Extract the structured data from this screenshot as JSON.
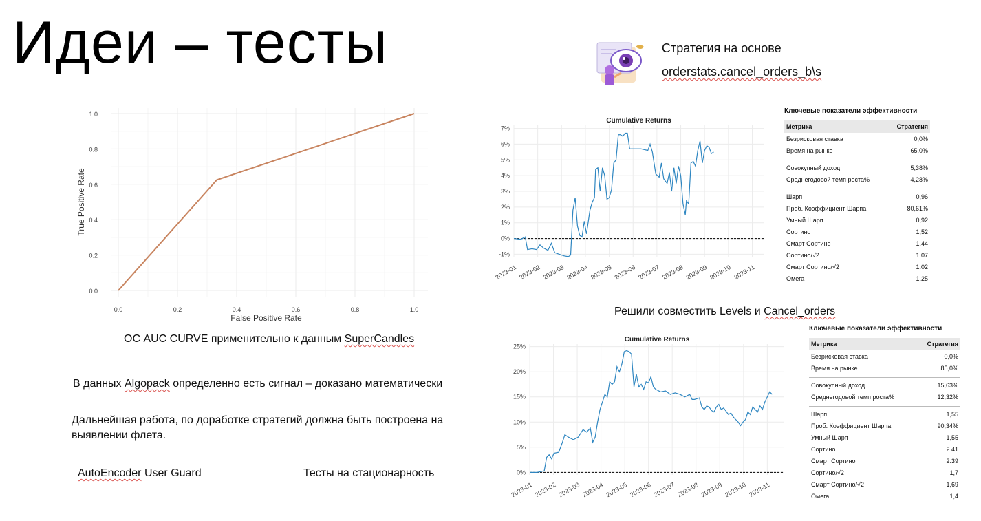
{
  "slide": {
    "title": "Идеи – тесты",
    "strategy_line1": "Стратегия на основе",
    "strategy_line2": "orderstats.cancel_orders_b\\s",
    "combine_note_pre": "Решили совместить Levels и ",
    "combine_note_link": "Cancel_orders",
    "roc_caption_pre": "ОС AUC CURVE применительно к данным ",
    "roc_caption_link": "SuperCandles",
    "signal_pre": "В данных ",
    "signal_link": "Algopack",
    "signal_post": " определенно есть сигнал – доказано математически",
    "further_line1": "Дальнейшая работа, по доработке стратегий должна быть построена на",
    "further_line2": "выявлении флета.",
    "autoencoder_link": "AutoEncoder",
    "autoencoder_post": " User Guard",
    "stationarity": "Тесты на стационарность"
  },
  "colors": {
    "roc_line": "#c8845f",
    "returns_line": "#2e86c1",
    "zero_line": "#000000"
  },
  "metrics_tables": [
    {
      "title": "Ключевые показатели эффективности",
      "header": [
        "Метрика",
        "Стратегия"
      ],
      "groups": [
        [
          [
            "Безрисковая ставка",
            "0,0%"
          ],
          [
            "Время на рынке",
            "65,0%"
          ]
        ],
        [
          [
            "Совокупный доход",
            "5,38%"
          ],
          [
            "Среднегодовой темп роста%",
            "4,28%"
          ]
        ],
        [
          [
            "Шарп",
            "0,96"
          ],
          [
            "Проб. Коэффициент Шарпа",
            "80,61%"
          ],
          [
            "Умный Шарп",
            "0,92"
          ],
          [
            "Сортино",
            "1,52"
          ],
          [
            "Смарт Сортино",
            "1.44"
          ],
          [
            "Сортино/√2",
            "1.07"
          ],
          [
            "Смарт Сортино/√2",
            "1.02"
          ],
          [
            "Омега",
            "1,25"
          ]
        ]
      ]
    },
    {
      "title": "Ключевые показатели эффективности",
      "header": [
        "Метрика",
        "Стратегия"
      ],
      "groups": [
        [
          [
            "Безрисковая ставка",
            "0,0%"
          ],
          [
            "Время на рынке",
            "85,0%"
          ]
        ],
        [
          [
            "Совокупный доход",
            "15,63%"
          ],
          [
            "Среднегодовой темп роста%",
            "12,32%"
          ]
        ],
        [
          [
            "Шарп",
            "1,55"
          ],
          [
            "Проб. Коэффициент Шарпа",
            "90,34%"
          ],
          [
            "Умный Шарп",
            "1,55"
          ],
          [
            "Сортино",
            "2.41"
          ],
          [
            "Смарт Сортино",
            "2.39"
          ],
          [
            "Сортино/√2",
            "1,7"
          ],
          [
            "Смарт Сортино/√2",
            "1,69"
          ],
          [
            "Омега",
            "1,4"
          ]
        ]
      ]
    }
  ],
  "chart_data": [
    {
      "type": "line",
      "title": "",
      "xlabel": "False Positive Rate",
      "ylabel": "True Positive Rate",
      "x": [
        0.0,
        0.333,
        1.0
      ],
      "y": [
        0.0,
        0.625,
        1.0
      ],
      "xlim": [
        0,
        1
      ],
      "ylim": [
        0,
        1
      ],
      "xticks": [
        0.0,
        0.2,
        0.4,
        0.6,
        0.8,
        1.0
      ],
      "yticks": [
        0.0,
        0.2,
        0.4,
        0.6,
        0.8,
        1.0
      ],
      "tick_labels": [
        "0.0",
        "0.2",
        "0.4",
        "0.6",
        "0.8",
        "1.0"
      ],
      "grid": true
    },
    {
      "type": "line",
      "title": "Cumulative Returns",
      "xlabel": "",
      "ylabel": "",
      "x_ticks": [
        "2023-01",
        "2023-02",
        "2023-03",
        "2023-04",
        "2023-05",
        "2023-06",
        "2023-07",
        "2023-08",
        "2023-09",
        "2023-10",
        "2023-11"
      ],
      "y_ticks": [
        "-1%",
        "0%",
        "1%",
        "2%",
        "3%",
        "4%",
        "5%",
        "6%",
        "7%"
      ],
      "ylim": [
        -1.2,
        7.2
      ],
      "grid": true,
      "series": [
        {
          "values": [
            [
              0.0,
              0.0
            ],
            [
              0.3,
              -0.05
            ],
            [
              0.5,
              0.1
            ],
            [
              0.6,
              -0.7
            ],
            [
              0.8,
              -0.65
            ],
            [
              1.0,
              -0.7
            ],
            [
              1.15,
              -0.4
            ],
            [
              1.3,
              -0.6
            ],
            [
              1.5,
              -0.75
            ],
            [
              1.65,
              -0.3
            ],
            [
              1.8,
              -0.9
            ],
            [
              2.0,
              -1.0
            ],
            [
              2.2,
              -1.1
            ],
            [
              2.4,
              -1.15
            ],
            [
              2.5,
              -1.05
            ],
            [
              2.6,
              1.8
            ],
            [
              2.7,
              2.6
            ],
            [
              2.8,
              0.8
            ],
            [
              2.9,
              0.2
            ],
            [
              3.0,
              0.1
            ],
            [
              3.1,
              1.1
            ],
            [
              3.2,
              0.3
            ],
            [
              3.35,
              1.8
            ],
            [
              3.45,
              2.3
            ],
            [
              3.55,
              2.6
            ],
            [
              3.6,
              4.4
            ],
            [
              3.7,
              4.5
            ],
            [
              3.8,
              3.0
            ],
            [
              3.9,
              4.5
            ],
            [
              4.0,
              4.0
            ],
            [
              4.1,
              2.5
            ],
            [
              4.2,
              2.6
            ],
            [
              4.3,
              3.1
            ],
            [
              4.4,
              4.8
            ],
            [
              4.5,
              5.0
            ],
            [
              4.6,
              6.6
            ],
            [
              4.7,
              6.6
            ],
            [
              4.8,
              6.5
            ],
            [
              4.9,
              6.7
            ],
            [
              5.0,
              6.7
            ],
            [
              5.1,
              5.7
            ],
            [
              5.3,
              5.7
            ],
            [
              5.6,
              5.7
            ],
            [
              5.9,
              5.6
            ],
            [
              6.0,
              6.0
            ],
            [
              6.1,
              5.5
            ],
            [
              6.25,
              4.1
            ],
            [
              6.4,
              3.9
            ],
            [
              6.5,
              4.8
            ],
            [
              6.6,
              3.8
            ],
            [
              6.75,
              3.5
            ],
            [
              6.85,
              4.2
            ],
            [
              6.95,
              3.0
            ],
            [
              7.05,
              4.5
            ],
            [
              7.15,
              3.5
            ],
            [
              7.25,
              4.6
            ],
            [
              7.35,
              4.0
            ],
            [
              7.45,
              2.2
            ],
            [
              7.55,
              1.5
            ],
            [
              7.6,
              2.4
            ],
            [
              7.7,
              2.2
            ],
            [
              7.8,
              4.8
            ],
            [
              7.9,
              4.9
            ],
            [
              8.0,
              4.6
            ],
            [
              8.1,
              5.6
            ],
            [
              8.2,
              6.2
            ],
            [
              8.3,
              4.8
            ],
            [
              8.4,
              5.6
            ],
            [
              8.5,
              5.9
            ],
            [
              8.6,
              5.8
            ],
            [
              8.7,
              5.4
            ],
            [
              8.8,
              5.5
            ]
          ]
        }
      ]
    },
    {
      "type": "line",
      "title": "Cumulative Returns",
      "xlabel": "",
      "ylabel": "",
      "x_ticks": [
        "2023-01",
        "2023-02",
        "2023-03",
        "2023-04",
        "2023-05",
        "2023-06",
        "2023-07",
        "2023-08",
        "2023-09",
        "2023-10",
        "2023-11"
      ],
      "y_ticks": [
        "0%",
        "5%",
        "10%",
        "15%",
        "20%",
        "25%"
      ],
      "ylim": [
        -0.5,
        25.5
      ],
      "grid": true,
      "series": [
        {
          "values": [
            [
              0.0,
              0.0
            ],
            [
              0.3,
              0.0
            ],
            [
              0.6,
              0.3
            ],
            [
              0.7,
              3.0
            ],
            [
              0.8,
              3.5
            ],
            [
              0.9,
              2.7
            ],
            [
              1.0,
              3.8
            ],
            [
              1.2,
              4.0
            ],
            [
              1.35,
              6.0
            ],
            [
              1.45,
              7.5
            ],
            [
              1.6,
              7.0
            ],
            [
              1.8,
              6.5
            ],
            [
              2.0,
              7.0
            ],
            [
              2.2,
              8.5
            ],
            [
              2.35,
              8.0
            ],
            [
              2.5,
              8.8
            ],
            [
              2.6,
              6.0
            ],
            [
              2.7,
              7.0
            ],
            [
              2.8,
              10.0
            ],
            [
              2.9,
              12.5
            ],
            [
              3.0,
              14.0
            ],
            [
              3.1,
              15.5
            ],
            [
              3.2,
              15.0
            ],
            [
              3.3,
              18.0
            ],
            [
              3.4,
              17.5
            ],
            [
              3.5,
              18.0
            ],
            [
              3.6,
              21.0
            ],
            [
              3.7,
              20.0
            ],
            [
              3.8,
              21.5
            ],
            [
              3.9,
              24.0
            ],
            [
              4.0,
              24.2
            ],
            [
              4.1,
              24.0
            ],
            [
              4.2,
              23.5
            ],
            [
              4.3,
              17.0
            ],
            [
              4.4,
              19.5
            ],
            [
              4.5,
              17.0
            ],
            [
              4.6,
              17.5
            ],
            [
              4.7,
              16.5
            ],
            [
              4.8,
              18.0
            ],
            [
              4.9,
              17.8
            ],
            [
              5.0,
              19.0
            ],
            [
              5.1,
              17.0
            ],
            [
              5.2,
              16.5
            ],
            [
              5.4,
              16.0
            ],
            [
              5.6,
              16.2
            ],
            [
              5.8,
              15.5
            ],
            [
              6.0,
              15.8
            ],
            [
              6.2,
              15.5
            ],
            [
              6.4,
              15.0
            ],
            [
              6.6,
              15.5
            ],
            [
              6.7,
              14.5
            ],
            [
              6.8,
              14.5
            ],
            [
              7.0,
              14.8
            ],
            [
              7.1,
              13.0
            ],
            [
              7.2,
              12.5
            ],
            [
              7.3,
              13.2
            ],
            [
              7.4,
              13.0
            ],
            [
              7.5,
              12.3
            ],
            [
              7.6,
              12.0
            ],
            [
              7.7,
              13.0
            ],
            [
              7.8,
              13.5
            ],
            [
              7.9,
              12.5
            ],
            [
              8.0,
              12.8
            ],
            [
              8.2,
              11.5
            ],
            [
              8.3,
              11.8
            ],
            [
              8.4,
              11.0
            ],
            [
              8.5,
              10.5
            ],
            [
              8.6,
              10.0
            ],
            [
              8.7,
              9.3
            ],
            [
              8.8,
              10.0
            ],
            [
              8.9,
              10.5
            ],
            [
              9.0,
              12.0
            ],
            [
              9.1,
              11.5
            ],
            [
              9.2,
              13.0
            ],
            [
              9.3,
              12.5
            ],
            [
              9.4,
              12.0
            ],
            [
              9.5,
              13.2
            ],
            [
              9.6,
              12.5
            ],
            [
              9.7,
              14.0
            ],
            [
              9.8,
              15.0
            ],
            [
              9.9,
              16.0
            ],
            [
              10.0,
              15.5
            ]
          ]
        }
      ]
    }
  ]
}
